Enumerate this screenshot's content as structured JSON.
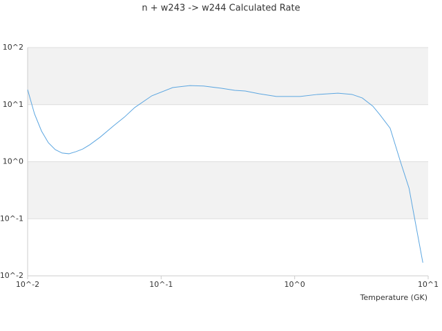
{
  "chart_data": {
    "type": "line",
    "title": "n + w243 -> w244 Calculated Rate",
    "x_label": "Temperature (GK)",
    "x": [
      0.01,
      0.01126,
      0.0127,
      0.0143,
      0.0161,
      0.0181,
      0.0204,
      0.023,
      0.0259,
      0.0292,
      0.0349,
      0.0443,
      0.053,
      0.0634,
      0.0852,
      0.122,
      0.164,
      0.208,
      0.28,
      0.356,
      0.427,
      0.543,
      0.729,
      1.1,
      1.48,
      2.11,
      2.69,
      3.21,
      3.85,
      4.33,
      5.19,
      6.21,
      7.19,
      7.9,
      9.12
    ],
    "values": [
      18.3,
      6.9,
      3.45,
      2.15,
      1.63,
      1.42,
      1.38,
      1.5,
      1.67,
      1.98,
      2.69,
      4.31,
      6.03,
      8.9,
      14.3,
      19.9,
      21.6,
      21.2,
      19.4,
      17.8,
      17.3,
      15.5,
      13.9,
      13.9,
      15.1,
      15.9,
      15.1,
      13.1,
      9.4,
      6.73,
      3.86,
      0.986,
      0.343,
      0.1035,
      0.017
    ],
    "color": "#5aa5e0",
    "xscale": "log",
    "yscale": "log",
    "xlim": [
      0.01,
      10
    ],
    "ylim": [
      0.01,
      100
    ],
    "xticks": [
      {
        "value": 0.01,
        "label": "10^-2"
      },
      {
        "value": 0.1,
        "label": "10^-1"
      },
      {
        "value": 1,
        "label": "10^0"
      },
      {
        "value": 10,
        "label": "10^1"
      }
    ],
    "yticks": [
      {
        "value": 0.01,
        "label": "10^-2"
      },
      {
        "value": 0.1,
        "label": "10^-1"
      },
      {
        "value": 1,
        "label": "10^0"
      },
      {
        "value": 10,
        "label": "10^1"
      },
      {
        "value": 100,
        "label": "10^2"
      }
    ],
    "grid": true
  }
}
